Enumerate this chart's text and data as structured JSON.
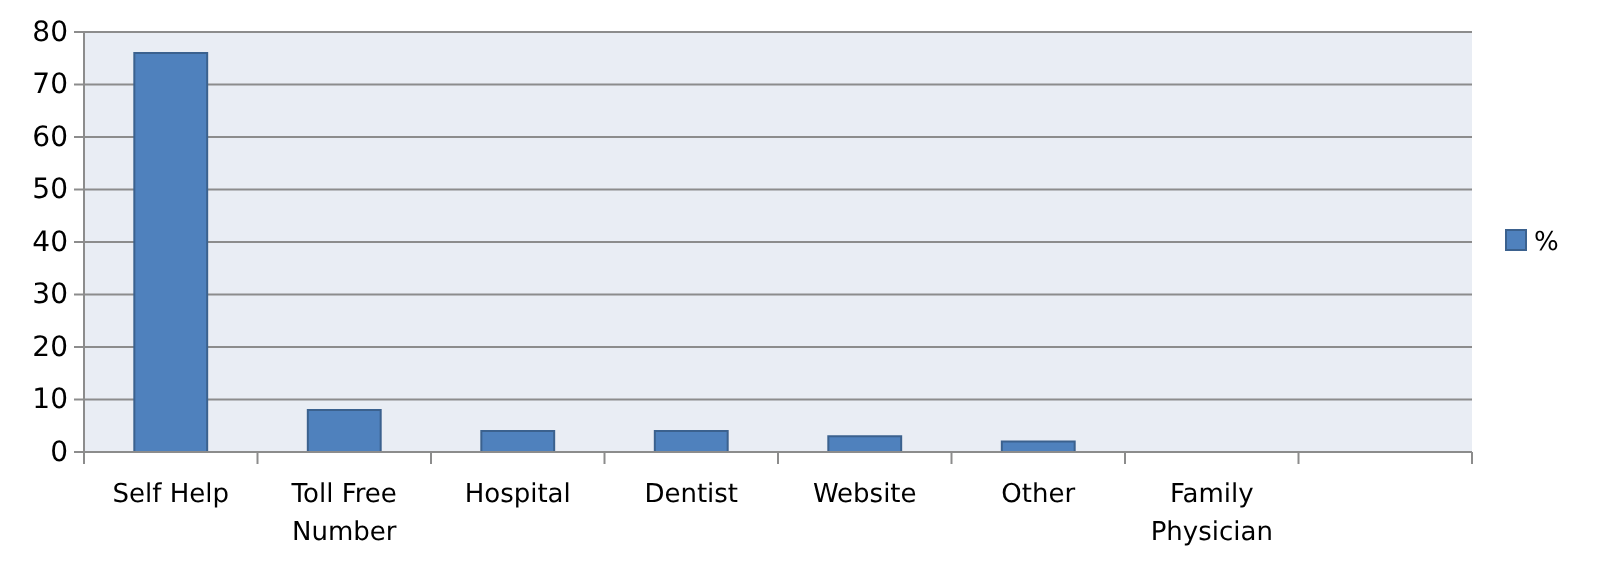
{
  "chart_data": {
    "type": "bar",
    "categories": [
      "Self Help",
      "Toll Free Number",
      "Hospital",
      "Dentist",
      "Website",
      "Other",
      "Family Physician",
      null
    ],
    "series": [
      {
        "name": "%",
        "color": "#4f81bd",
        "values": [
          76,
          8,
          4,
          4,
          3,
          2,
          0,
          null
        ]
      }
    ],
    "ylim": [
      0,
      80
    ],
    "yticks": [
      0,
      10,
      20,
      30,
      40,
      50,
      60,
      70,
      80
    ],
    "grid": "y",
    "legend": "right"
  }
}
